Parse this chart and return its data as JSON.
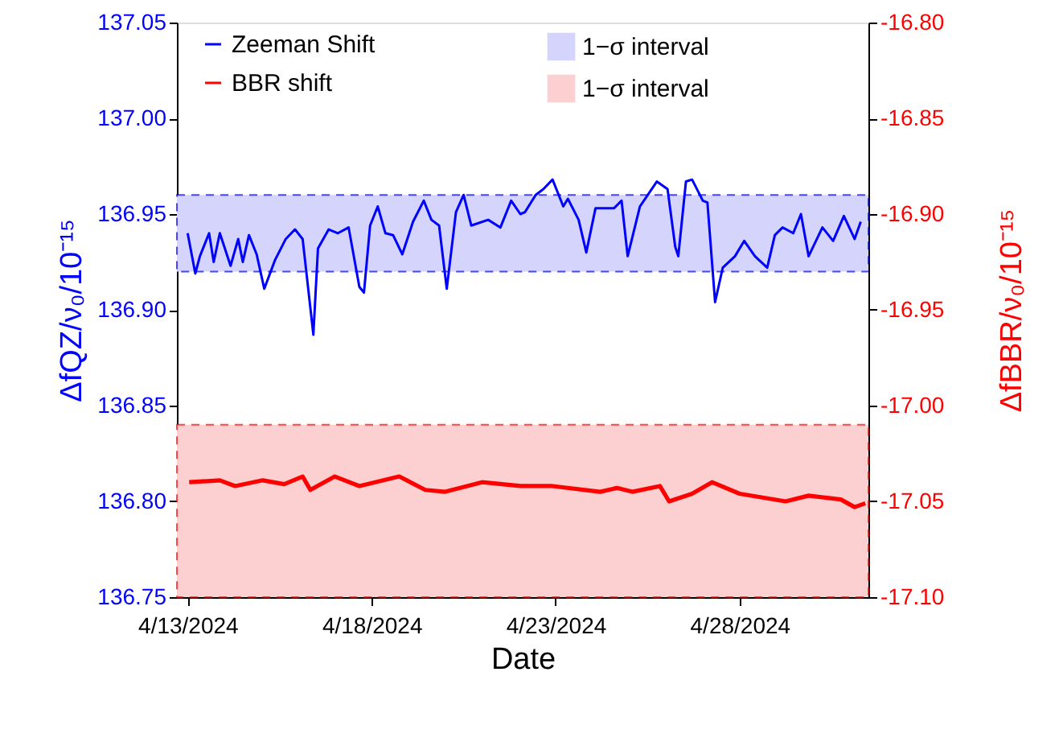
{
  "chart_data": {
    "type": "line",
    "xlabel": "Date",
    "ylabel": "ΔfQZ/ν₀/10⁻¹⁵",
    "y2label": "ΔfBBR/ν₀/10⁻¹⁵",
    "xlim": [
      "2024-04-12T17:00",
      "2024-05-01T12:00"
    ],
    "xticks": [
      {
        "value": "2024-04-13",
        "label": "4/13/2024"
      },
      {
        "value": "2024-04-18",
        "label": "4/18/2024"
      },
      {
        "value": "2024-04-23",
        "label": "4/23/2024"
      },
      {
        "value": "2024-04-28",
        "label": "4/28/2024"
      }
    ],
    "ylim": [
      136.75,
      137.05
    ],
    "yticks": [
      136.75,
      {
        "value": 136.8,
        "label": "136.80"
      },
      136.85,
      {
        "value": 136.9,
        "label": "136.90"
      },
      136.95,
      {
        "value": 137.0,
        "label": "137.00"
      },
      137.05
    ],
    "y2lim": [
      -17.1,
      -16.8
    ],
    "y2ticks": [
      {
        "value": -17.1,
        "label": "-17.10"
      },
      -17.05,
      {
        "value": -17.0,
        "label": "-17.00"
      },
      -16.95,
      {
        "value": -16.9,
        "label": "-16.90"
      },
      -16.85,
      {
        "value": -16.8,
        "label": "-16.80"
      }
    ],
    "grid": false,
    "legend": "top left",
    "marker": "none",
    "line_style": "solid",
    "series": [
      {
        "name": "Zeeman Shift",
        "color": "#0000ff",
        "x": [
          "2024-04-13T00:00",
          "2024-04-13T05:00",
          "2024-04-13T08:00",
          "2024-04-13T14:00",
          "2024-04-13T17:00",
          "2024-04-13T21:00",
          "2024-04-14T04:00",
          "2024-04-14T09:00",
          "2024-04-14T12:00",
          "2024-04-14T16:00",
          "2024-04-14T21:00",
          "2024-04-15T02:00",
          "2024-04-15T09:00",
          "2024-04-15T16:00",
          "2024-04-15T22:00",
          "2024-04-16T03:00",
          "2024-04-16T10:00",
          "2024-04-16T13:00",
          "2024-04-16T20:00",
          "2024-04-17T02:00",
          "2024-04-17T09:00",
          "2024-04-17T16:00",
          "2024-04-17T19:00",
          "2024-04-17T23:00",
          "2024-04-18T04:00",
          "2024-04-18T09:00",
          "2024-04-18T14:00",
          "2024-04-18T20:00",
          "2024-04-19T03:00",
          "2024-04-19T10:00",
          "2024-04-19T15:00",
          "2024-04-19T20:00",
          "2024-04-20T01:00",
          "2024-04-20T07:00",
          "2024-04-20T12:00",
          "2024-04-20T17:00",
          "2024-04-21T04:00",
          "2024-04-21T12:00",
          "2024-04-21T19:00",
          "2024-04-22T01:00",
          "2024-04-22T04:00",
          "2024-04-22T11:00",
          "2024-04-22T16:00",
          "2024-04-22T22:00",
          "2024-04-23T05:00",
          "2024-04-23T08:00",
          "2024-04-23T15:00",
          "2024-04-23T20:00",
          "2024-04-24T02:00",
          "2024-04-24T14:00",
          "2024-04-24T19:00",
          "2024-04-24T23:00",
          "2024-04-25T07:00",
          "2024-04-25T18:00",
          "2024-04-26T01:00",
          "2024-04-26T06:00",
          "2024-04-26T08:00",
          "2024-04-26T13:00",
          "2024-04-26T17:00",
          "2024-04-27T00:00",
          "2024-04-27T03:00",
          "2024-04-27T08:00",
          "2024-04-27T13:00",
          "2024-04-27T21:00",
          "2024-04-28T03:00",
          "2024-04-28T10:00",
          "2024-04-28T18:00",
          "2024-04-28T23:00",
          "2024-04-29T04:00",
          "2024-04-29T11:00",
          "2024-04-29T16:00",
          "2024-04-29T21:00",
          "2024-04-30T06:00",
          "2024-04-30T13:00",
          "2024-04-30T20:00",
          "2024-05-01T03:00",
          "2024-05-01T07:00"
        ],
        "values": [
          136.94,
          136.919,
          136.928,
          136.94,
          136.925,
          136.94,
          136.923,
          136.937,
          136.925,
          136.939,
          136.929,
          136.911,
          136.926,
          136.937,
          136.942,
          136.937,
          136.887,
          136.932,
          136.942,
          136.94,
          136.943,
          136.912,
          136.909,
          136.944,
          136.954,
          136.94,
          136.939,
          136.929,
          136.946,
          136.957,
          136.947,
          136.944,
          136.911,
          136.951,
          136.96,
          136.944,
          136.947,
          136.943,
          136.957,
          136.95,
          136.951,
          136.96,
          136.963,
          136.968,
          136.954,
          136.958,
          136.947,
          136.93,
          136.953,
          136.953,
          136.957,
          136.928,
          136.954,
          136.967,
          136.963,
          136.933,
          136.928,
          136.967,
          136.968,
          136.957,
          136.956,
          136.904,
          136.922,
          136.928,
          136.936,
          136.928,
          136.922,
          136.939,
          136.943,
          136.94,
          136.95,
          136.928,
          136.943,
          136.936,
          136.949,
          136.937,
          136.946
        ]
      },
      {
        "name": "BBR shift",
        "color": "#ff0000",
        "axis": "y2",
        "x": [
          "2024-04-13T01:00",
          "2024-04-13T21:00",
          "2024-04-14T07:00",
          "2024-04-15T01:00",
          "2024-04-15T15:00",
          "2024-04-16T03:00",
          "2024-04-16T08:00",
          "2024-04-17T00:00",
          "2024-04-17T16:00",
          "2024-04-18T18:00",
          "2024-04-19T11:00",
          "2024-04-20T00:00",
          "2024-04-21T00:00",
          "2024-04-22T01:00",
          "2024-04-22T22:00",
          "2024-04-24T05:00",
          "2024-04-24T16:00",
          "2024-04-25T02:00",
          "2024-04-25T20:00",
          "2024-04-26T02:00",
          "2024-04-26T17:00",
          "2024-04-27T06:00",
          "2024-04-28T00:00",
          "2024-04-29T06:00",
          "2024-04-29T21:00",
          "2024-04-30T18:00",
          "2024-05-01T03:00",
          "2024-05-01T10:00"
        ],
        "values": [
          -17.04,
          -17.039,
          -17.042,
          -17.039,
          -17.041,
          -17.037,
          -17.044,
          -17.037,
          -17.042,
          -17.037,
          -17.044,
          -17.045,
          -17.04,
          -17.042,
          -17.042,
          -17.045,
          -17.043,
          -17.045,
          -17.042,
          -17.05,
          -17.046,
          -17.04,
          -17.046,
          -17.05,
          -17.047,
          -17.049,
          -17.053,
          -17.051
        ]
      }
    ],
    "bands": [
      {
        "axis": "y",
        "from": 136.92,
        "to": 136.96,
        "label": "1−σ interval",
        "color": "#d4d4fc"
      },
      {
        "axis": "y2",
        "from": -17.1,
        "to": -17.01,
        "label": "1−σ interval",
        "color": "#fcd0d0"
      }
    ]
  }
}
